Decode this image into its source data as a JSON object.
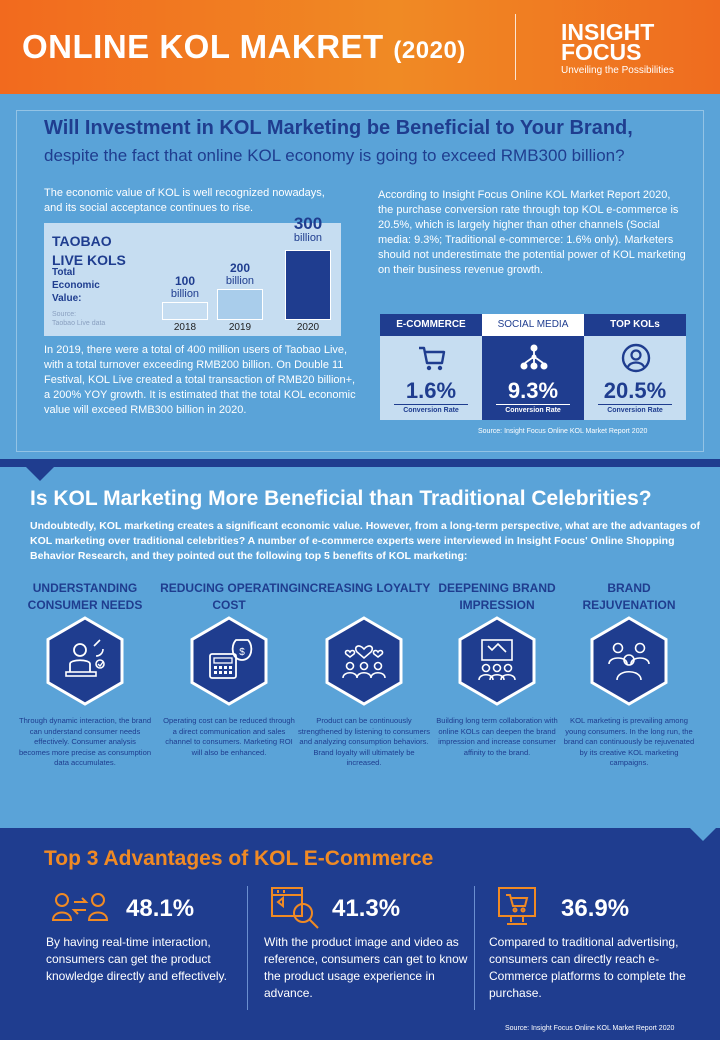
{
  "header": {
    "title": "ONLINE KOL MAKRET",
    "year": "(2020)",
    "brand_line1": "INSIGHT",
    "brand_line2": "FOCUS",
    "tagline": "Unveiling the Possibilities"
  },
  "section1": {
    "heading": "Will Investment in KOL Marketing be Beneficial to Your Brand,",
    "subheading": "despite the fact that online KOL economy is going to exceed RMB300 billion?",
    "left_top": "The economic value of KOL is well recognized nowadays, and its social acceptance continues to rise.",
    "left_bottom": "In 2019, there were  a total of 400 million users of Taobao Live, with a total turnover exceeding RMB200 billion. On Double 11 Festival, KOL Live created a total transaction of RMB20 billion+, a 200% YOY growth.  It is estimated that the total KOL economic value will exceed RMB300 billion in 2020.",
    "right_top": "According to Insight Focus Online KOL Market Report 2020, the purchase conversion rate through top KOL e-commerce  is 20.5%, which is largely higher than other channels (Social media: 9.3%; Traditional e-commerce: 1.6% only). Marketers should not underestimate the potential power of KOL marketing on their business revenue growth.",
    "taobao": {
      "title": "TAOBAO LIVE KOLS",
      "subtitle": "Total Economic Value:",
      "source": "Source:\nTaobao Live data",
      "chart_data": {
        "type": "bar",
        "categories": [
          "2018",
          "2019",
          "2020"
        ],
        "values": [
          100,
          200,
          300
        ],
        "value_labels": [
          {
            "num": "100",
            "unit": "billion"
          },
          {
            "num": "200",
            "unit": "billion"
          },
          {
            "num": "300",
            "unit": "billion"
          }
        ],
        "colors": [
          "#c6ddf1",
          "#a9cdeb",
          "#1f3d8f"
        ]
      }
    },
    "conversion": {
      "columns": [
        {
          "head": "E-COMMERCE",
          "value": "1.6%",
          "caption": "Conversion Rate",
          "icon": "cart-icon"
        },
        {
          "head": "SOCIAL MEDIA",
          "value": "9.3%",
          "caption": "Conversion Rate",
          "icon": "network-icon"
        },
        {
          "head": "TOP KOLs",
          "value": "20.5%",
          "caption": "Conversion Rate",
          "icon": "user-circle-icon"
        }
      ],
      "source": "Source:  Insight Focus Online KOL Market  Report  2020"
    }
  },
  "section2": {
    "heading": "Is KOL Marketing More Beneficial than Traditional Celebrities?",
    "intro": "Undoubtedly, KOL marketing creates a significant  economic value.  However, from a long-term perspective, what are the advantages  of KOL marketing over traditional  celebrities? A number of e-commerce experts were interviewed in Insight Focus' Online Shopping Behavior Research, and they pointed out the following  top 5 benefits of KOL marketing:",
    "benefits": [
      {
        "title": "UNDERSTANDING CONSUMER NEEDS",
        "text": "Through dynamic interaction, the brand can understand consumer needs effectively. Consumer analysis becomes more precise as consumption data accumulates.",
        "icon": "consultant-icon"
      },
      {
        "title": "REDUCING OPERATING COST",
        "text": "Operating cost can be reduced through a direct communication and sales channel to consumers. Marketing ROI will also be enhanced.",
        "icon": "calculator-money-icon"
      },
      {
        "title": "INCREASING LOYALTY",
        "text": "Product can be continuously strengthened by listening to consumers and analyzing consumption behaviors. Brand loyalty will ultimately be increased.",
        "icon": "hearts-people-icon"
      },
      {
        "title": "DEEPENING BRAND IMPRESSION",
        "text": "Building long term collaboration with online KOLs can deepen the brand impression and increase consumer affinity to the brand.",
        "icon": "audience-screen-icon"
      },
      {
        "title": "BRAND REJUVENATION",
        "text": "KOL marketing is prevailing among young consumers. In the long run, the brand can continuously be rejuvenated by its creative KOL marketing campaigns.",
        "icon": "group-people-icon"
      }
    ]
  },
  "section3": {
    "heading": "Top 3 Advantages of KOL E-Commerce",
    "advantages": [
      {
        "pct": "48.1%",
        "text": "By having real-time interaction, consumers can get the product knowledge directly and effectively.",
        "icon": "exchange-people-icon"
      },
      {
        "pct": "41.3%",
        "text": "With the product image and video as reference, consumers can get to know the product usage experience in advance.",
        "icon": "media-search-icon"
      },
      {
        "pct": "36.9%",
        "text": "Compared to traditional advertising, consumers can directly reach e-Commerce platforms to complete the purchase.",
        "icon": "monitor-cart-icon"
      }
    ],
    "source": "Source:  Insight Focus Online KOL Market  Report  2020"
  }
}
